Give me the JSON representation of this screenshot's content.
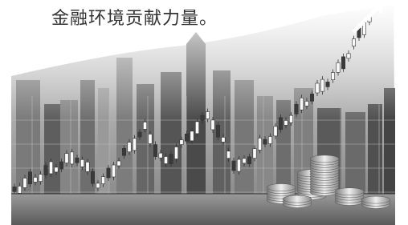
{
  "text": "金融环境贡献力量。"
}
